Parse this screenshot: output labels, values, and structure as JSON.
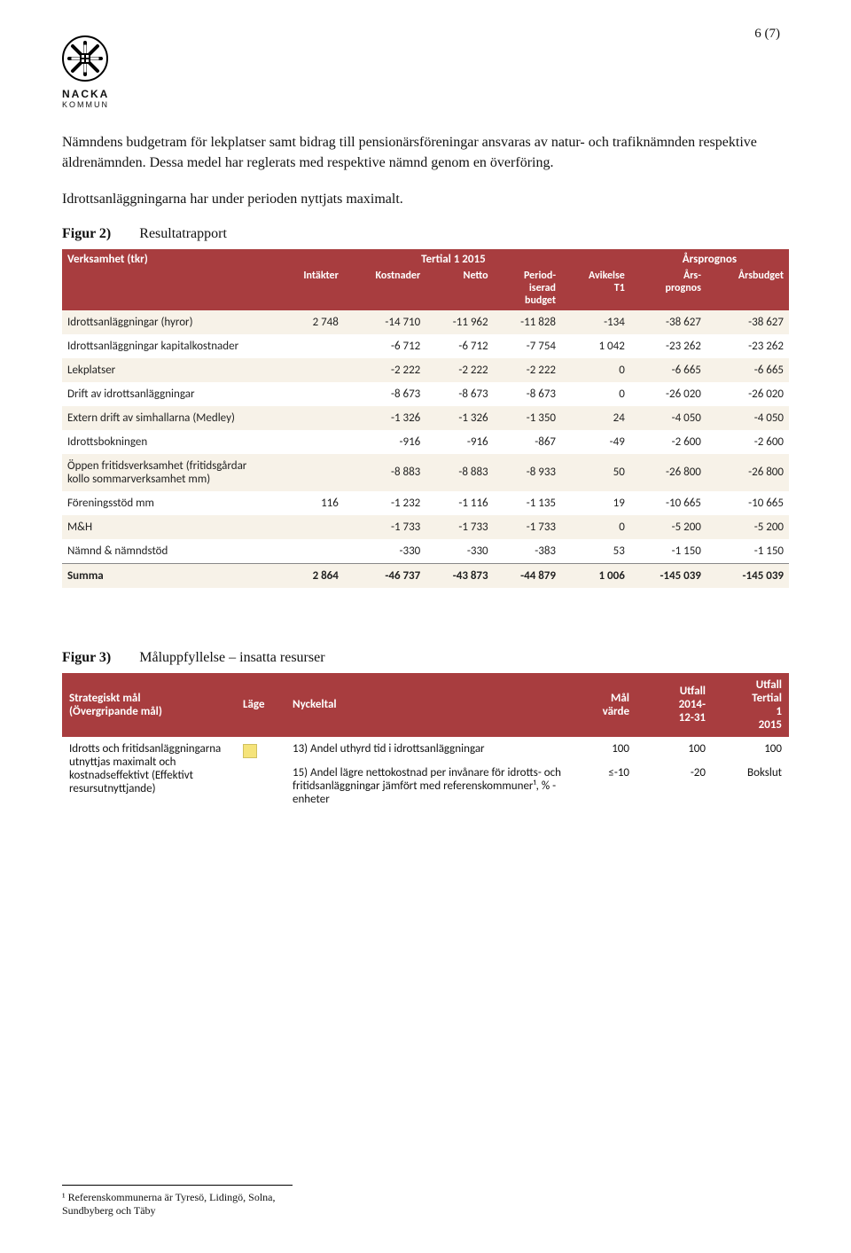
{
  "page_number_label": "6 (7)",
  "logo": {
    "line1": "NACKA",
    "line2": "KOMMUN"
  },
  "intro_para_1": "Nämndens budgetram för lekplatser samt bidrag till pensionärsföreningar ansvaras av natur- och trafiknämnden respektive äldrenämnden. Dessa medel har reglerats med respektive nämnd genom en överföring.",
  "intro_para_2": "Idrottsanläggningarna har under perioden nyttjats maximalt.",
  "figure2": {
    "caption_bold": "Figur 2)",
    "caption_rest": "Resultatrapport",
    "header_left": "Verksamhet (tkr)",
    "header_group_center": "Tertial 1 2015",
    "header_group_right": "Årsprognos",
    "cols": [
      "Intäkter",
      "Kostnader",
      "Netto",
      "Period-\niserad\nbudget",
      "Avikelse\nT1",
      "Års-\nprognos",
      "Årsbudget"
    ],
    "rows": [
      {
        "label": "Idrottsanläggningar (hyror)",
        "cells": [
          "2 748",
          "-14 710",
          "-11 962",
          "-11 828",
          "-134",
          "-38 627",
          "-38 627"
        ],
        "alt": true
      },
      {
        "label": "Idrottsanläggningar kapitalkostnader",
        "cells": [
          "",
          "-6 712",
          "-6 712",
          "-7 754",
          "1 042",
          "-23 262",
          "-23 262"
        ],
        "alt": false
      },
      {
        "label": "Lekplatser",
        "cells": [
          "",
          "-2 222",
          "-2 222",
          "-2 222",
          "0",
          "-6 665",
          "-6 665"
        ],
        "alt": true
      },
      {
        "label": "Drift av idrottsanläggningar",
        "cells": [
          "",
          "-8 673",
          "-8 673",
          "-8 673",
          "0",
          "-26 020",
          "-26 020"
        ],
        "alt": false
      },
      {
        "label": "Extern drift av simhallarna (Medley)",
        "cells": [
          "",
          "-1 326",
          "-1 326",
          "-1 350",
          "24",
          "-4 050",
          "-4 050"
        ],
        "alt": true
      },
      {
        "label": "Idrottsbokningen",
        "cells": [
          "",
          "-916",
          "-916",
          "-867",
          "-49",
          "-2 600",
          "-2 600"
        ],
        "alt": false
      },
      {
        "label": "Öppen fritidsverksamhet (fritidsgårdar kollo sommarverksamhet mm)",
        "cells": [
          "",
          "-8 883",
          "-8 883",
          "-8 933",
          "50",
          "-26 800",
          "-26 800"
        ],
        "alt": true
      },
      {
        "label": "Föreningsstöd mm",
        "cells": [
          "116",
          "-1 232",
          "-1 116",
          "-1 135",
          "19",
          "-10 665",
          "-10 665"
        ],
        "alt": false
      },
      {
        "label": "M&H",
        "cells": [
          "",
          "-1 733",
          "-1 733",
          "-1 733",
          "0",
          "-5 200",
          "-5 200"
        ],
        "alt": true
      },
      {
        "label": "Nämnd & nämndstöd",
        "cells": [
          "",
          "-330",
          "-330",
          "-383",
          "53",
          "-1 150",
          "-1 150"
        ],
        "alt": false
      }
    ],
    "sum_label": "Summa",
    "sum_cells": [
      "2 864",
      "-46 737",
      "-43 873",
      "-44 879",
      "1 006",
      "-145 039",
      "-145 039"
    ]
  },
  "figure3": {
    "caption_bold": "Figur 3)",
    "caption_rest": "Måluppfyllelse – insatta resurser",
    "head": {
      "c1": "Strategiskt mål\n(Övergripande mål)",
      "c2": "Läge",
      "c3": "Nyckeltal",
      "c4": "Mål\nvärde",
      "c5": "Utfall\n2014-\n12-31",
      "c6": "Utfall\nTertial\n1\n2015"
    },
    "row_label": "Idrotts och fritidsanläggningarna utnyttjas maximalt och kostnadseffektivt (Effektivt resursutnyttjande)",
    "subrows": [
      {
        "text": "13) Andel uthyrd tid i idrottsanläggningar",
        "mal": "100",
        "u1": "100",
        "u2": "100"
      },
      {
        "text": "15) Andel lägre nettokostnad per invånare för idrotts- och fritidsanläggningar jämfört med referenskommuner¹, % - enheter",
        "mal": "≤-10",
        "u1": "-20",
        "u2": "Bokslut"
      }
    ],
    "status_color": "#f5e37a"
  },
  "footnote": "¹ Referenskommunerna är Tyresö, Lidingö, Solna, Sundbyberg och Täby",
  "colors": {
    "header_bg": "#a83d3f",
    "header_fg": "#ffffff",
    "alt_row_bg": "#f7f2e8"
  }
}
